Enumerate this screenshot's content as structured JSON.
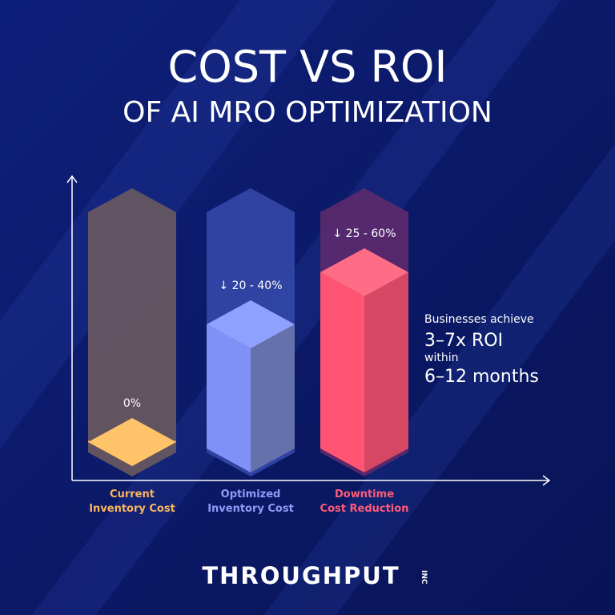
{
  "header": {
    "title": "COST VS ROI",
    "subtitle": "OF AI MRO OPTIMIZATION"
  },
  "bars": [
    {
      "label_lines": [
        "Current",
        "Inventory Cost"
      ],
      "value_label": "0%"
    },
    {
      "label_lines": [
        "Optimized",
        "Inventory Cost"
      ],
      "value_label": "↓ 20 - 40%"
    },
    {
      "label_lines": [
        "Downtime",
        "Cost Reduction"
      ],
      "value_label": "↓ 25 - 60%"
    }
  ],
  "callout": [
    "Businesses achieve",
    "3–7x ROI",
    "within",
    "6–12 months"
  ],
  "logo": {
    "name": "THROUGHPUT",
    "suffix": "INC"
  }
}
